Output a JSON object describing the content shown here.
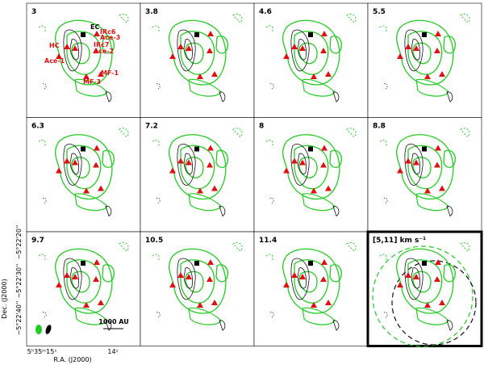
{
  "panels": [
    {
      "label": "3"
    },
    {
      "label": "3.8"
    },
    {
      "label": "4.6"
    },
    {
      "label": "5.5"
    },
    {
      "label": "6.3"
    },
    {
      "label": "7.2"
    },
    {
      "label": "8"
    },
    {
      "label": "8.8"
    },
    {
      "label": "9.7"
    },
    {
      "label": "10.5"
    },
    {
      "label": "11.4"
    },
    {
      "label": "[5,11] km s⁻¹"
    }
  ],
  "annotations": [
    "EC",
    "IRc6",
    "Ace-3",
    "HC",
    "IRc7",
    "Ace-2",
    "Ace-1",
    "MF-1",
    "MF-3"
  ],
  "axes": {
    "y_label": "Dec. (J2000)",
    "x_label": "R.A. (J2000)",
    "y_ticks": [
      "−5°22'20''",
      "−5°22'30''",
      "−5°22'40''"
    ],
    "x_ticks": [
      "5ʰ35ᵐ15ˢ",
      "14ˢ"
    ]
  },
  "scale_bar": "1000 AU"
}
